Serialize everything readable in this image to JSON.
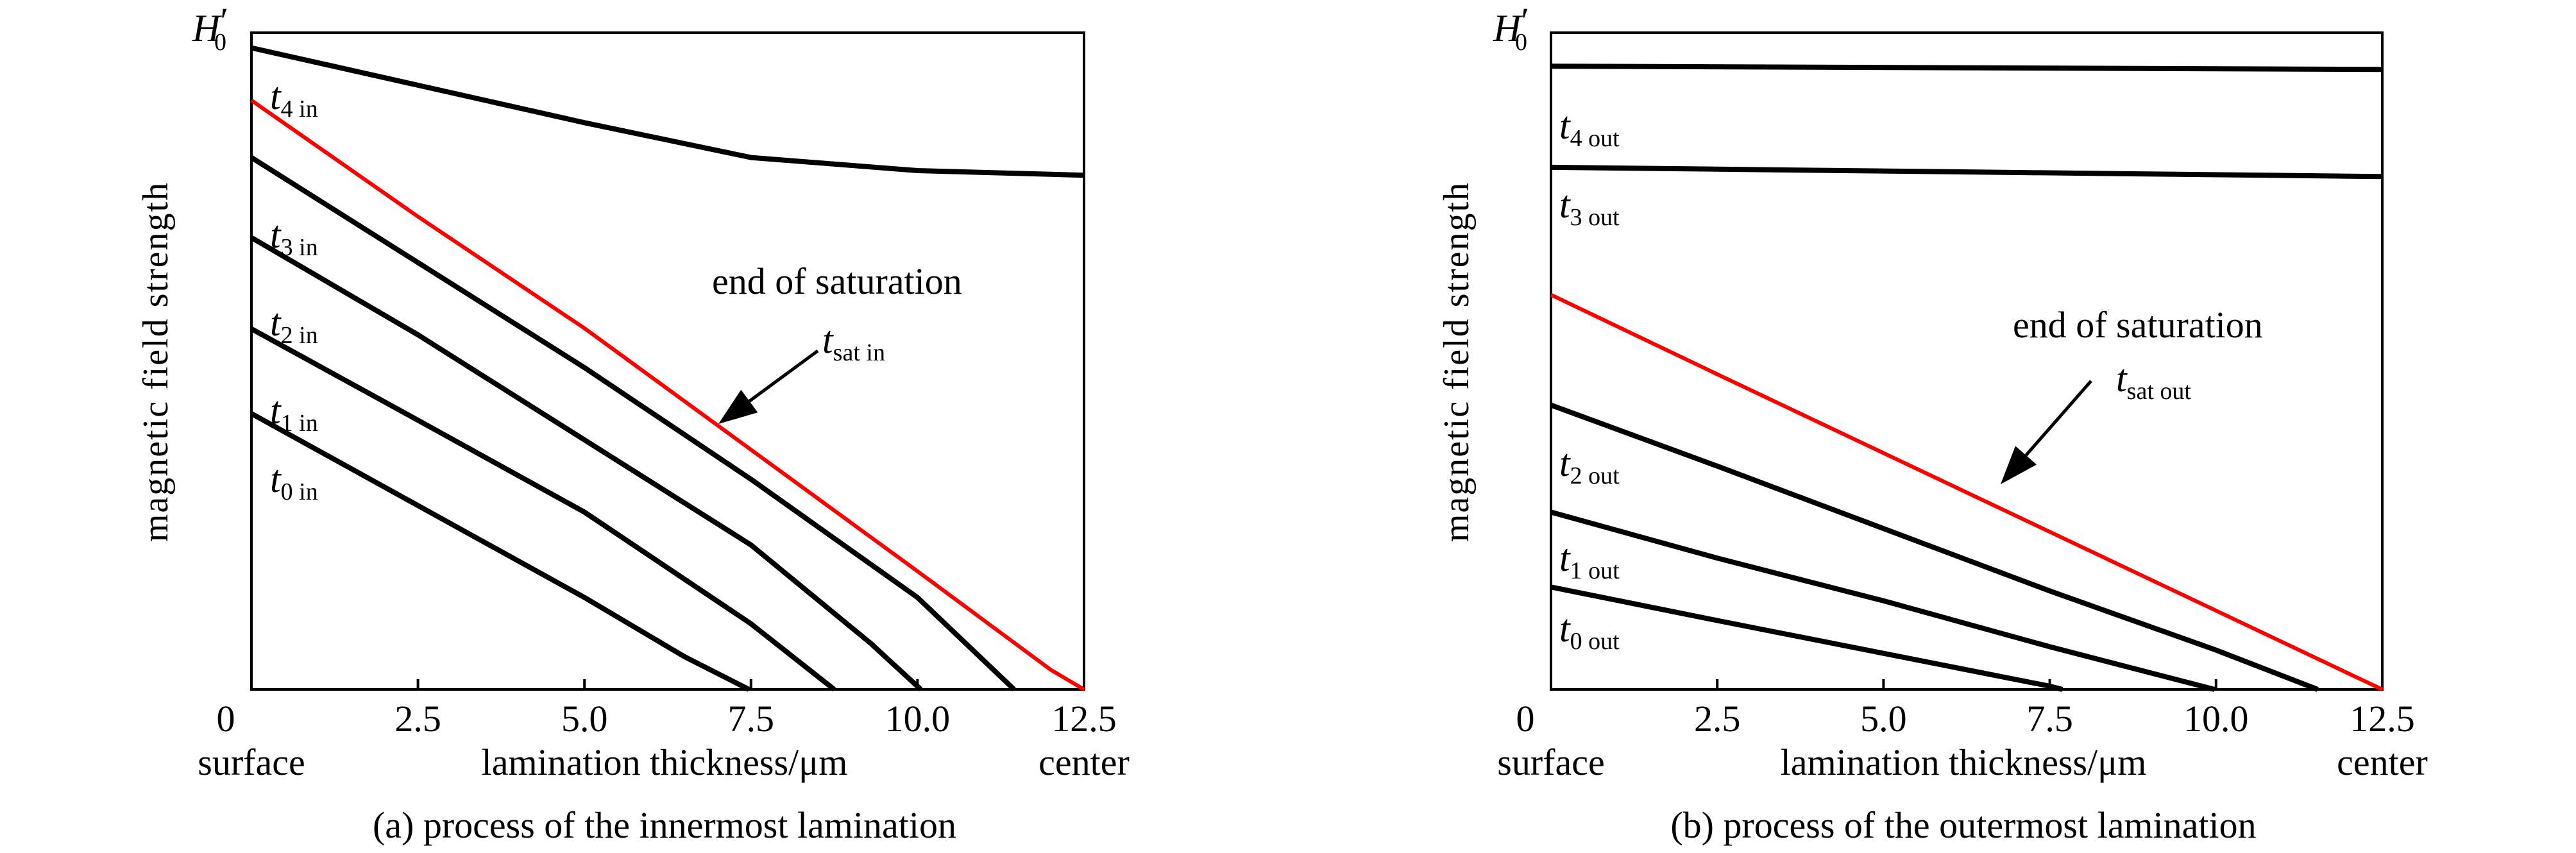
{
  "chart_data": [
    {
      "type": "line",
      "caption": "(a) process of the innermost lamination",
      "xlabel": "lamination thickness/μm",
      "ylabel": "magnetic field strength",
      "x_left_label": "surface",
      "x_right_label": "center",
      "y_top_label": {
        "symbol": "H",
        "prime": "′",
        "sub": "0"
      },
      "xlim": [
        0,
        12.5
      ],
      "ylim": [
        0,
        1
      ],
      "xticks": [
        "0",
        "2.5",
        "5.0",
        "7.5",
        "10.0",
        "12.5"
      ],
      "xtick_values": [
        0,
        2.5,
        5,
        7.5,
        10,
        12.5
      ],
      "annotation": {
        "text": "end of saturation",
        "arrow_label": {
          "symbol": "t",
          "sub": "sat in"
        }
      },
      "series": [
        {
          "name": "t0 in",
          "label": {
            "symbol": "t",
            "sub": "0 in"
          },
          "color": "#000000",
          "x": [
            0,
            2.5,
            5,
            6.5,
            7.47
          ],
          "y": [
            0.42,
            0.28,
            0.14,
            0.05,
            0
          ]
        },
        {
          "name": "t1 in",
          "label": {
            "symbol": "t",
            "sub": "1 in"
          },
          "color": "#000000",
          "x": [
            0,
            2.5,
            5,
            7.5,
            8.75
          ],
          "y": [
            0.549,
            0.41,
            0.27,
            0.1,
            0
          ]
        },
        {
          "name": "t2 in",
          "label": {
            "symbol": "t",
            "sub": "2 in"
          },
          "color": "#000000",
          "x": [
            0,
            2.5,
            5,
            7.5,
            9.3,
            10.05
          ],
          "y": [
            0.688,
            0.54,
            0.38,
            0.22,
            0.07,
            0
          ]
        },
        {
          "name": "t3 in",
          "label": {
            "symbol": "t",
            "sub": "3 in"
          },
          "color": "#000000",
          "x": [
            0,
            2.5,
            5,
            7.5,
            10,
            11.45
          ],
          "y": [
            0.81,
            0.65,
            0.49,
            0.32,
            0.14,
            0
          ]
        },
        {
          "name": "t sat in",
          "label": null,
          "color": "#ff0000",
          "x": [
            0,
            2.5,
            5,
            7.5,
            10,
            12.0,
            12.5
          ],
          "y": [
            0.897,
            0.72,
            0.55,
            0.365,
            0.18,
            0.03,
            0
          ]
        },
        {
          "name": "t4 in",
          "label": {
            "symbol": "t",
            "sub": "4 in"
          },
          "color": "#000000",
          "x": [
            0,
            2.5,
            5,
            7.5,
            10,
            12.5
          ],
          "y": [
            0.977,
            0.92,
            0.863,
            0.81,
            0.79,
            0.783
          ]
        }
      ]
    },
    {
      "type": "line",
      "caption": "(b) process of the outermost lamination",
      "xlabel": "lamination thickness/μm",
      "ylabel": "magnetic field strength",
      "x_left_label": "surface",
      "x_right_label": "center",
      "y_top_label": {
        "symbol": "H",
        "prime": "′",
        "sub": "0"
      },
      "xlim": [
        0,
        12.5
      ],
      "ylim": [
        0,
        1
      ],
      "xticks": [
        "0",
        "2.5",
        "5.0",
        "7.5",
        "10.0",
        "12.5"
      ],
      "xtick_values": [
        0,
        2.5,
        5,
        7.5,
        10,
        12.5
      ],
      "annotation": {
        "text": "end of saturation",
        "arrow_label": {
          "symbol": "t",
          "sub": "sat out"
        }
      },
      "series": [
        {
          "name": "t0 out",
          "label": {
            "symbol": "t",
            "sub": "0 out"
          },
          "color": "#000000",
          "x": [
            0,
            2.5,
            5,
            7.5,
            7.69
          ],
          "y": [
            0.156,
            0.105,
            0.055,
            0.005,
            0
          ]
        },
        {
          "name": "t1 out",
          "label": {
            "symbol": "t",
            "sub": "1 out"
          },
          "color": "#000000",
          "x": [
            0,
            2.5,
            5,
            7.5,
            9.98
          ],
          "y": [
            0.27,
            0.2,
            0.135,
            0.065,
            0
          ]
        },
        {
          "name": "t2 out",
          "label": {
            "symbol": "t",
            "sub": "2 out"
          },
          "color": "#000000",
          "x": [
            0,
            2.5,
            5,
            7.5,
            10,
            11.53
          ],
          "y": [
            0.433,
            0.34,
            0.245,
            0.15,
            0.06,
            0
          ]
        },
        {
          "name": "t sat out",
          "label": null,
          "color": "#ff0000",
          "x": [
            0,
            2.5,
            5,
            7.5,
            10,
            12.5
          ],
          "y": [
            0.601,
            0.48,
            0.36,
            0.24,
            0.12,
            0
          ]
        },
        {
          "name": "t3 out",
          "label": {
            "symbol": "t",
            "sub": "3 out"
          },
          "color": "#000000",
          "x": [
            0,
            12.5
          ],
          "y": [
            0.795,
            0.781
          ]
        },
        {
          "name": "t4 out",
          "label": {
            "symbol": "t",
            "sub": "4 out"
          },
          "color": "#000000",
          "x": [
            0,
            12.5
          ],
          "y": [
            0.949,
            0.944
          ]
        }
      ]
    }
  ]
}
